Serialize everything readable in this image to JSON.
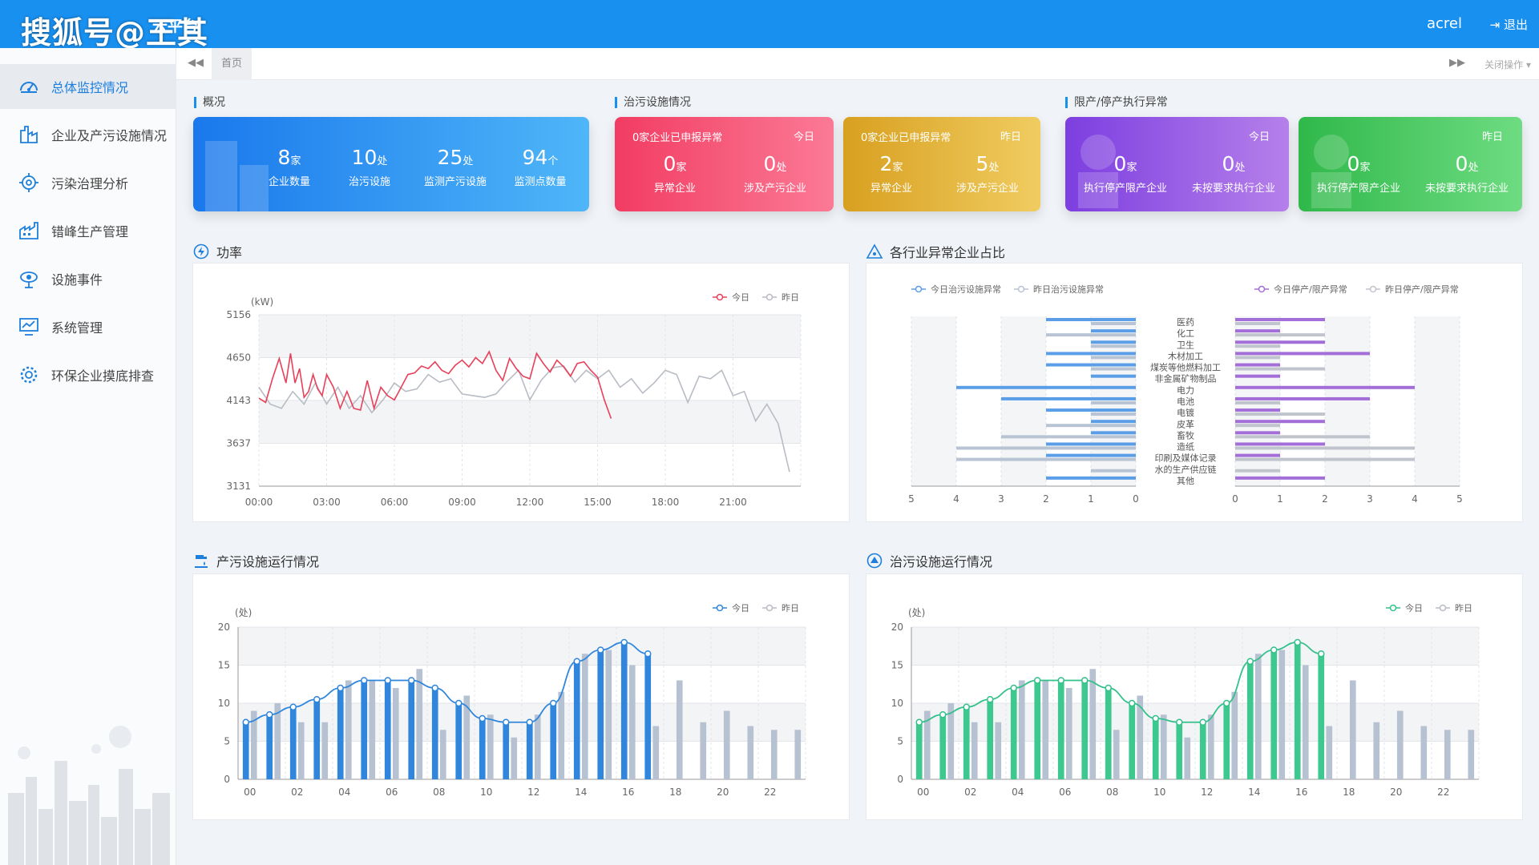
{
  "header": {
    "logo_text": "搜狐号@王其",
    "title": "云平台",
    "user": "acrel",
    "logout": "退出",
    "logout_icon": "logout-icon"
  },
  "tabbar": {
    "home": "首页",
    "operations": "关闭操作",
    "nav_left_icon": "backward-icon",
    "nav_right_icon": "forward-icon"
  },
  "sidebar": {
    "items": [
      {
        "label": "总体监控情况",
        "icon": "dashboard-icon",
        "active": true
      },
      {
        "label": "企业及产污设施情况",
        "icon": "factory-icon",
        "active": false
      },
      {
        "label": "污染治理分析",
        "icon": "target-icon",
        "active": false
      },
      {
        "label": "错峰生产管理",
        "icon": "industry-icon",
        "active": false
      },
      {
        "label": "设施事件",
        "icon": "gear-eye-icon",
        "active": false
      },
      {
        "label": "系统管理",
        "icon": "monitor-chart-icon",
        "active": false
      },
      {
        "label": "环保企业摸底排查",
        "icon": "cog-icon",
        "active": false
      }
    ]
  },
  "sections": {
    "overview": "概况",
    "treatment": "治污设施情况",
    "restrict": "限产/停产执行异常"
  },
  "overview_card": {
    "color": "#2f8ef0",
    "stats": [
      {
        "num": "8",
        "unit": "家",
        "caption": "企业数量"
      },
      {
        "num": "10",
        "unit": "处",
        "caption": "治污设施"
      },
      {
        "num": "25",
        "unit": "处",
        "caption": "监测产污设施"
      },
      {
        "num": "94",
        "unit": "个",
        "caption": "监测点数量"
      }
    ]
  },
  "treatment_cards": [
    {
      "title": "0家企业已申报异常",
      "date": "今日",
      "color": "#f5466a",
      "stats": [
        {
          "num": "0",
          "unit": "家",
          "caption": "异常企业"
        },
        {
          "num": "0",
          "unit": "处",
          "caption": "涉及产污企业"
        }
      ]
    },
    {
      "title": "0家企业已申报异常",
      "date": "昨日",
      "color": "#dfa830",
      "stats": [
        {
          "num": "2",
          "unit": "家",
          "caption": "异常企业"
        },
        {
          "num": "5",
          "unit": "处",
          "caption": "涉及产污企业"
        }
      ]
    }
  ],
  "restrict_cards": [
    {
      "date": "今日",
      "color": "#8a4ee0",
      "stats": [
        {
          "num": "0",
          "unit": "家",
          "caption": "执行停产限产企业"
        },
        {
          "num": "0",
          "unit": "处",
          "caption": "未按要求执行企业"
        }
      ]
    },
    {
      "date": "昨日",
      "color": "#3cc462",
      "stats": [
        {
          "num": "0",
          "unit": "家",
          "caption": "执行停产限产企业"
        },
        {
          "num": "0",
          "unit": "处",
          "caption": "未按要求执行企业"
        }
      ]
    }
  ],
  "chart_titles": {
    "power": "功率",
    "industry": "各行业异常企业占比",
    "production": "产污设施运行情况",
    "treatment_run": "治污设施运行情况"
  },
  "chart_data": [
    {
      "type": "line",
      "ylabel": "(kW)",
      "yticks": [
        "5156",
        "4650",
        "4143",
        "3637",
        "3131"
      ],
      "ylim": [
        3131,
        5156
      ],
      "xticks": [
        "00:00",
        "03:00",
        "06:00",
        "09:00",
        "12:00",
        "15:00",
        "18:00",
        "21:00"
      ],
      "series": [
        {
          "name": "今日",
          "color": "#e8405a",
          "x": [
            0,
            0.3,
            0.6,
            0.9,
            1.2,
            1.4,
            1.6,
            1.8,
            2.0,
            2.2,
            2.4,
            2.6,
            2.8,
            3.0,
            3.3,
            3.6,
            3.9,
            4.2,
            4.5,
            4.8,
            5.1,
            5.4,
            5.7,
            6.0,
            6.3,
            6.6,
            6.9,
            7.2,
            7.5,
            7.8,
            8.1,
            8.4,
            8.7,
            9.0,
            9.3,
            9.6,
            9.9,
            10.2,
            10.5,
            10.8,
            11.1,
            11.4,
            11.7,
            12.0,
            12.3,
            12.6,
            12.9,
            13.2,
            13.5,
            13.8,
            14.1,
            14.4,
            14.7,
            15.0,
            15.3,
            15.6
          ],
          "y": [
            4170,
            4120,
            4400,
            4640,
            4350,
            4700,
            4350,
            4520,
            4180,
            4250,
            4450,
            4280,
            4200,
            4450,
            4300,
            4050,
            4250,
            4050,
            4030,
            4380,
            4050,
            4300,
            4200,
            4150,
            4300,
            4450,
            4470,
            4550,
            4520,
            4600,
            4500,
            4460,
            4560,
            4620,
            4540,
            4650,
            4580,
            4720,
            4500,
            4380,
            4640,
            4520,
            4430,
            4400,
            4700,
            4580,
            4480,
            4620,
            4540,
            4430,
            4580,
            4600,
            4500,
            4420,
            4150,
            3930
          ]
        },
        {
          "name": "昨日",
          "color": "#b8bcc4",
          "x": [
            0,
            0.5,
            1.0,
            1.5,
            2.0,
            2.5,
            3.0,
            3.5,
            4.0,
            4.5,
            5.0,
            5.5,
            6.0,
            6.5,
            7.0,
            7.5,
            8.0,
            8.5,
            9.0,
            9.5,
            10.0,
            10.5,
            11.0,
            11.5,
            12.0,
            12.5,
            13.0,
            13.5,
            14.0,
            14.5,
            15.0,
            15.5,
            16.0,
            16.5,
            17.0,
            17.5,
            18.0,
            18.5,
            19.0,
            19.5,
            20.0,
            20.5,
            21.0,
            21.5,
            22.0,
            22.5,
            23.0,
            23.5
          ],
          "y": [
            4300,
            4100,
            4050,
            4250,
            4100,
            4350,
            4100,
            4300,
            4050,
            4200,
            4000,
            4150,
            4350,
            4250,
            4280,
            4450,
            4360,
            4400,
            4220,
            4200,
            4180,
            4220,
            4370,
            4500,
            4150,
            4380,
            4530,
            4550,
            4360,
            4500,
            4400,
            4500,
            4300,
            4400,
            4230,
            4350,
            4500,
            4450,
            4120,
            4430,
            4400,
            4500,
            4200,
            4250,
            3900,
            4100,
            3870,
            3300
          ]
        }
      ],
      "legend": "top-right"
    },
    {
      "type": "bar",
      "categories": [
        "医药",
        "化工",
        "卫生",
        "木材加工",
        "煤炭等他燃料加工",
        "非金属矿物制品",
        "电力",
        "电池",
        "电镀",
        "皮革",
        "畜牧",
        "造纸",
        "印刷及媒体记录",
        "水的生产供应链",
        "其他"
      ],
      "left_xticks": [
        "5",
        "4",
        "3",
        "2",
        "1",
        "0"
      ],
      "right_xticks": [
        "0",
        "1",
        "2",
        "3",
        "4",
        "5"
      ],
      "series": [
        {
          "name": "今日治污设施异常",
          "color": "#5b9ee8",
          "side": "left",
          "values": [
            2,
            1,
            1,
            2,
            2,
            1,
            4,
            3,
            2,
            1,
            1,
            2,
            2,
            0,
            2
          ]
        },
        {
          "name": "昨日治污设施异常",
          "color": "#b8c4d4",
          "side": "left",
          "values": [
            1,
            2,
            1,
            1,
            1,
            0,
            0,
            1,
            1,
            2,
            3,
            4,
            4,
            1,
            0
          ]
        },
        {
          "name": "今日停产/限产异常",
          "color": "#a46ed8",
          "side": "right",
          "values": [
            2,
            1,
            2,
            3,
            1,
            1,
            4,
            3,
            1,
            2,
            1,
            2,
            1,
            0,
            2
          ]
        },
        {
          "name": "昨日停产/限产异常",
          "color": "#c0c4cc",
          "side": "right",
          "values": [
            1,
            2,
            1,
            1,
            2,
            0,
            0,
            1,
            2,
            1,
            3,
            4,
            4,
            1,
            0
          ]
        }
      ],
      "legend": "top"
    },
    {
      "type": "bar",
      "ylabel": "(处)",
      "ylim": [
        0,
        20
      ],
      "yticks": [
        "20",
        "15",
        "10",
        "5",
        "0"
      ],
      "xticks": [
        "00",
        "02",
        "04",
        "06",
        "08",
        "10",
        "12",
        "14",
        "16",
        "18",
        "20",
        "22"
      ],
      "series": [
        {
          "name": "今日",
          "color": "#2f86dc",
          "values": [
            7.5,
            8.5,
            9.5,
            10.5,
            12,
            13,
            13,
            13,
            12,
            10,
            8,
            7.5,
            7.5,
            10,
            15.5,
            17,
            18,
            16.5
          ]
        },
        {
          "name": "昨日",
          "color": "#b6c2d2",
          "values": [
            9,
            10,
            7.5,
            7.5,
            13,
            13,
            12,
            14.5,
            6.5,
            11,
            8.5,
            5.5,
            8.5,
            11.5,
            16.5,
            17,
            15,
            7,
            13,
            7.5,
            9,
            7,
            6.5,
            6.5
          ]
        }
      ],
      "legend": "top-right"
    },
    {
      "type": "bar",
      "ylabel": "(处)",
      "ylim": [
        0,
        20
      ],
      "yticks": [
        "20",
        "15",
        "10",
        "5",
        "0"
      ],
      "xticks": [
        "00",
        "02",
        "04",
        "06",
        "08",
        "10",
        "12",
        "14",
        "16",
        "18",
        "20",
        "22"
      ],
      "series": [
        {
          "name": "今日",
          "color": "#3cc88e",
          "values": [
            7.5,
            8.5,
            9.5,
            10.5,
            12,
            13,
            13,
            13,
            12,
            10,
            8,
            7.5,
            7.5,
            10,
            15.5,
            17,
            18,
            16.5
          ]
        },
        {
          "name": "昨日",
          "color": "#b6c2d2",
          "values": [
            9,
            10,
            7.5,
            7.5,
            13,
            13,
            12,
            14.5,
            6.5,
            11,
            8.5,
            5.5,
            8.5,
            11.5,
            16.5,
            17,
            15,
            7,
            13,
            7.5,
            9,
            7,
            6.5,
            6.5
          ]
        }
      ],
      "legend": "top-right"
    }
  ]
}
